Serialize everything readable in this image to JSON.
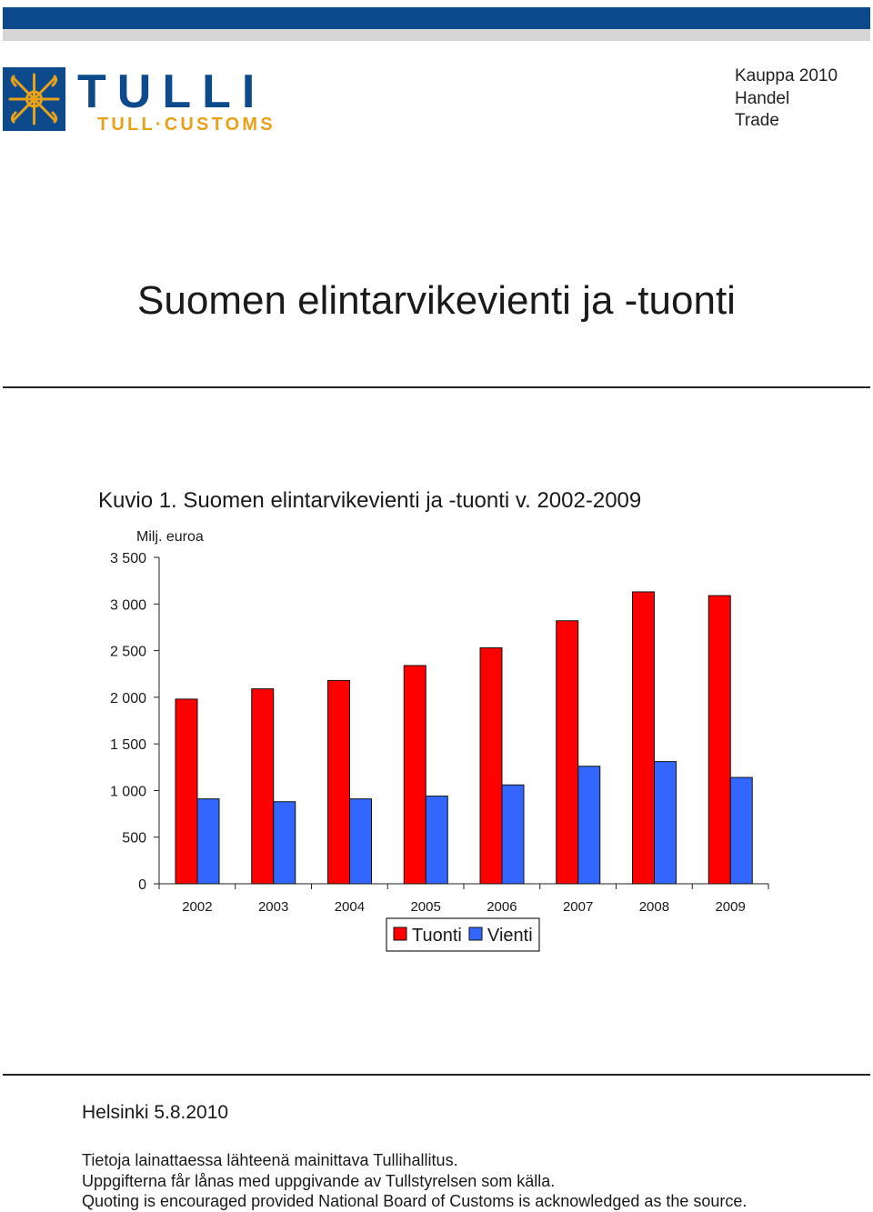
{
  "header": {
    "logo_text": "TULLI",
    "logo_subtext": "TULL·CUSTOMS",
    "publication_lines": [
      "Kauppa 2010",
      "Handel",
      "Trade"
    ],
    "brand_color": "#0d4a8c",
    "logo_accent_color": "#e8a21a"
  },
  "document": {
    "title": "Suomen elintarvikevienti ja -tuonti"
  },
  "figure": {
    "caption": "Kuvio 1. Suomen elintarvikevienti ja -tuonti v. 2002-2009"
  },
  "chart_data": {
    "type": "bar",
    "ylabel": "Milj. euroa",
    "ylim": [
      0,
      3500
    ],
    "yticks": [
      0,
      500,
      1000,
      1500,
      2000,
      2500,
      3000,
      3500
    ],
    "ytick_labels": [
      "0",
      "500",
      "1 000",
      "1 500",
      "2 000",
      "2 500",
      "3 000",
      "3 500"
    ],
    "categories": [
      "2002",
      "2003",
      "2004",
      "2005",
      "2006",
      "2007",
      "2008",
      "2009"
    ],
    "series": [
      {
        "name": "Tuonti",
        "color": "#ff0000",
        "values": [
          1980,
          2090,
          2180,
          2340,
          2530,
          2820,
          3130,
          3090
        ]
      },
      {
        "name": "Vienti",
        "color": "#3366ff",
        "values": [
          910,
          880,
          910,
          940,
          1060,
          1260,
          1310,
          1140
        ]
      }
    ],
    "grid": false,
    "legend": "bottom-center"
  },
  "footer": {
    "date": "Helsinki 5.8.2010",
    "notes": [
      "Tietoja lainattaessa lähteenä mainittava Tullihallitus.",
      "Uppgifterna får lånas med uppgivande av Tullstyrelsen som källa.",
      "Quoting is encouraged provided National Board of Customs is acknowledged as the source."
    ]
  }
}
